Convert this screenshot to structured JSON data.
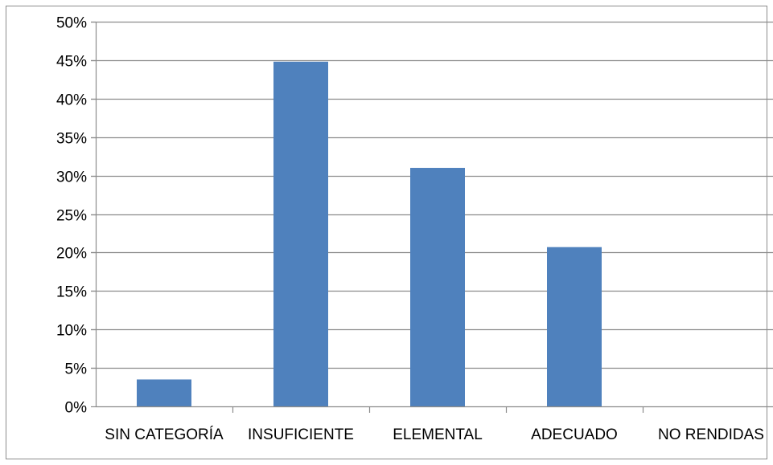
{
  "chart_data": {
    "type": "bar",
    "categories": [
      "SIN CATEGORÍA",
      "INSUFICIENTE",
      "ELEMENTAL",
      "ADECUADO",
      "NO RENDIDAS"
    ],
    "values": [
      3.5,
      44.8,
      31.0,
      20.7,
      0
    ],
    "y_ticks": [
      "0%",
      "5%",
      "10%",
      "15%",
      "20%",
      "25%",
      "30%",
      "35%",
      "40%",
      "45%",
      "50%"
    ],
    "ylim": [
      0,
      50
    ],
    "unit": "%",
    "grid": true,
    "legend": "none",
    "bar_color": "#4F81BD",
    "grid_color": "#8C8C8C",
    "border_color": "#7F7F7F"
  }
}
